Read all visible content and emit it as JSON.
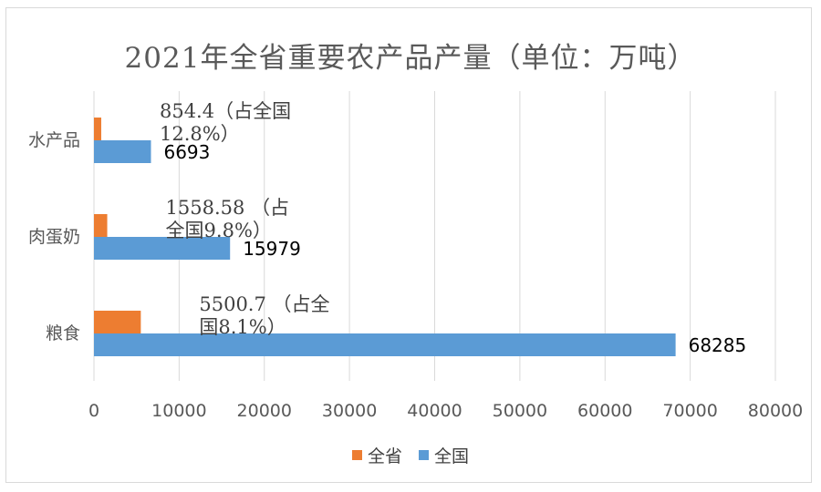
{
  "chart_data": {
    "type": "bar",
    "orientation": "horizontal",
    "title": "2021年全省重要农产品产量（单位：万吨）",
    "categories": [
      "水产品",
      "肉蛋奶",
      "粮食"
    ],
    "series": [
      {
        "name": "全省",
        "color": "#ed7d31",
        "values": [
          854.4,
          1558.58,
          5500.7
        ],
        "data_labels": [
          [
            "854.4（占全国",
            "12.8%）"
          ],
          [
            "1558.58 （占",
            "全国9.8%）"
          ],
          [
            "5500.7 （占全",
            "国8.1%）"
          ]
        ]
      },
      {
        "name": "全国",
        "color": "#5b9bd5",
        "values": [
          6693,
          15979,
          68285
        ],
        "data_labels": [
          [
            "6693"
          ],
          [
            "15979"
          ],
          [
            "68285"
          ]
        ]
      }
    ],
    "xlim": [
      0,
      80000
    ],
    "x_ticks": [
      "0",
      "10000",
      "20000",
      "30000",
      "40000",
      "50000",
      "60000",
      "70000",
      "80000"
    ],
    "grid": true,
    "legend_position": "bottom"
  }
}
